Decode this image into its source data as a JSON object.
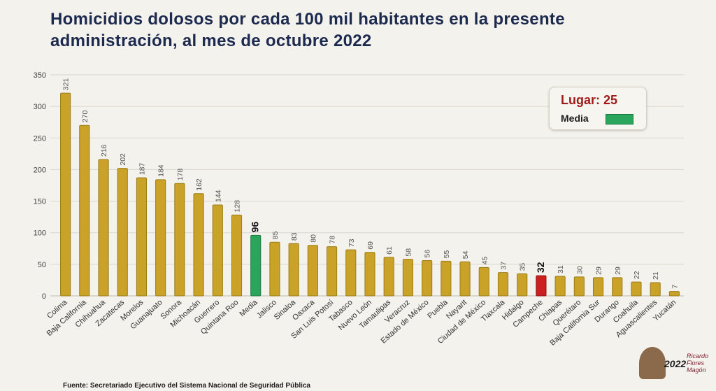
{
  "title_line1": "Homicidios dolosos por cada 100 mil habitantes en la presente",
  "title_line2": "administración, al mes de octubre 2022",
  "legend": {
    "rank_label": "Lugar:",
    "rank_value": "25",
    "media_label": "Media"
  },
  "source": "Fuente: Secretariado Ejecutivo del Sistema Nacional de Seguridad Pública",
  "logo": {
    "year": "2022",
    "name": "Ricardo Flores Magón"
  },
  "colors": {
    "bar": "#c9a227",
    "media": "#2aa55c",
    "highlight": "#cc1f1f",
    "title": "#1d2a4f"
  },
  "chart_data": {
    "type": "bar",
    "ylim": [
      0,
      350
    ],
    "yticks": [
      0,
      50,
      100,
      150,
      200,
      250,
      300,
      350
    ],
    "categories": [
      "Colima",
      "Baja California",
      "Chihuahua",
      "Zacatecas",
      "Morelos",
      "Guanajuato",
      "Sonora",
      "Michoacán",
      "Guerrero",
      "Quintana Roo",
      "Media",
      "Jalisco",
      "Sinaloa",
      "Oaxaca",
      "San Luis Potosí",
      "Tabasco",
      "Nuevo León",
      "Tamaulipas",
      "Veracruz",
      "Estado de México",
      "Puebla",
      "Nayarit",
      "Ciudad de México",
      "Tlaxcala",
      "Hidalgo",
      "Campeche",
      "Chiapas",
      "Querétaro",
      "Baja California Sur",
      "Durango",
      "Coahuila",
      "Aguascalientes",
      "Yucatán"
    ],
    "values": [
      321,
      270,
      216,
      202,
      187,
      184,
      178,
      162,
      144,
      128,
      96,
      85,
      83,
      80,
      78,
      73,
      69,
      61,
      58,
      56,
      55,
      54,
      45,
      37,
      35,
      32,
      31,
      30,
      29,
      29,
      22,
      21,
      7
    ],
    "media_category": "Media",
    "highlight_category": "Campeche",
    "grid": true
  }
}
